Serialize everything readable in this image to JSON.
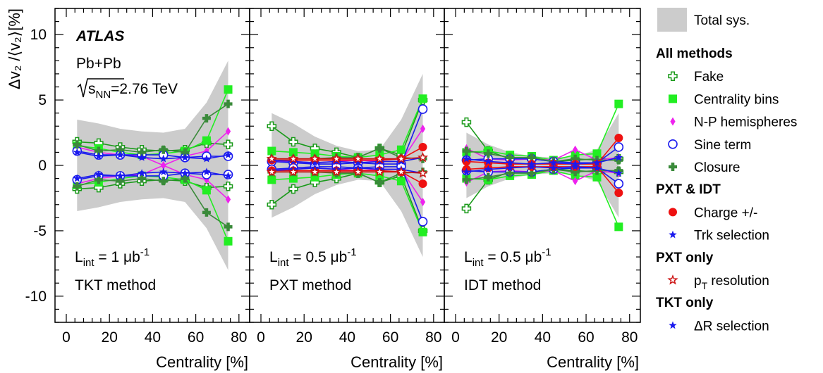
{
  "chart_data": {
    "type": "scatter",
    "ylabel": "Δv₂ /⟨v₂⟩[%]",
    "ylim": [
      -12,
      12
    ],
    "xlim": [
      0,
      83
    ],
    "yticks": [
      -10,
      -5,
      0,
      5,
      10
    ],
    "xticks": [
      0,
      20,
      40,
      60,
      80
    ],
    "xlabel": "Centrality [%]",
    "x": [
      5,
      15,
      25,
      35,
      45,
      55,
      65,
      75
    ],
    "experiment": "ATLAS",
    "system": "Pb+Pb",
    "energy_prefix": "s",
    "energy_sub": "NN",
    "energy_value": "=2.76 TeV",
    "colors": {
      "fake": "#1a9a1a",
      "centrality": "#22ee22",
      "np": "#ee22ee",
      "sine": "#1a1aee",
      "closure": "#3a8a3a",
      "charge": "#ee1111",
      "trk": "#1a1aee",
      "pt": "#cc1111",
      "dr": "#1a1aee",
      "band": "#cccccc"
    },
    "panels": [
      {
        "lumi_prefix": "L",
        "lumi_sub": "int",
        "lumi_value": " = 1 μb",
        "lumi_sup": "-1",
        "method": "TKT method",
        "band": [
          3.5,
          3.2,
          2.8,
          2.6,
          2.5,
          2.8,
          4.8,
          8.0
        ],
        "series": [
          {
            "key": "fake",
            "marker": "cross_open",
            "values": [
              1.8,
              1.7,
              1.4,
              1.2,
              1.1,
              1.2,
              1.7,
              1.6
            ]
          },
          {
            "key": "centrality",
            "marker": "square",
            "values": [
              1.5,
              1.3,
              1.0,
              0.8,
              0.9,
              1.1,
              1.9,
              5.8
            ]
          },
          {
            "key": "np",
            "marker": "diamond",
            "values": [
              1.4,
              1.0,
              0.8,
              0.7,
              0.0,
              0.7,
              1.1,
              2.6
            ]
          },
          {
            "key": "sine",
            "marker": "circle_open",
            "values": [
              1.1,
              0.8,
              0.8,
              0.8,
              0.8,
              0.6,
              0.7,
              0.7
            ]
          },
          {
            "key": "closure",
            "marker": "cross_filled",
            "values": [
              1.6,
              1.1,
              1.2,
              1.0,
              1.2,
              1.0,
              3.6,
              4.7
            ]
          },
          {
            "key": "dr",
            "marker": "star",
            "values": [
              1.0,
              0.7,
              0.8,
              0.6,
              0.5,
              0.6,
              0.5,
              0.8
            ]
          }
        ]
      },
      {
        "lumi_prefix": "L",
        "lumi_sub": "int",
        "lumi_value": " = 0.5 μb",
        "lumi_sup": "-1",
        "method": "PXT method",
        "band": [
          4.0,
          3.2,
          2.2,
          1.5,
          1.1,
          1.2,
          3.5,
          7.0
        ],
        "series": [
          {
            "key": "fake",
            "marker": "cross_open",
            "values": [
              3.0,
              1.8,
              1.3,
              1.0,
              0.6,
              1.3,
              0.8,
              5.0
            ]
          },
          {
            "key": "centrality",
            "marker": "square",
            "values": [
              1.1,
              1.0,
              0.9,
              0.7,
              0.6,
              0.8,
              1.2,
              5.1
            ]
          },
          {
            "key": "np",
            "marker": "diamond",
            "values": [
              0.3,
              0.3,
              0.2,
              0.3,
              0.4,
              0.3,
              0.3,
              2.8
            ]
          },
          {
            "key": "sine",
            "marker": "circle_open",
            "values": [
              0.3,
              0.2,
              0.1,
              0.1,
              0.2,
              0.1,
              0.1,
              4.3
            ]
          },
          {
            "key": "closure",
            "marker": "cross_filled",
            "values": [
              0.5,
              0.5,
              0.5,
              0.6,
              0.6,
              1.3,
              0.6,
              0.5
            ]
          },
          {
            "key": "charge",
            "marker": "circle_filled",
            "values": [
              0.4,
              0.4,
              0.4,
              0.4,
              0.4,
              0.4,
              0.5,
              1.4
            ]
          },
          {
            "key": "trk",
            "marker": "star",
            "values": [
              0.4,
              0.3,
              0.2,
              0.3,
              0.2,
              0.3,
              0.3,
              0.6
            ]
          },
          {
            "key": "pt",
            "marker": "star_open",
            "values": [
              0.5,
              0.5,
              0.5,
              0.5,
              0.5,
              0.5,
              0.5,
              0.6
            ]
          }
        ]
      },
      {
        "lumi_prefix": "L",
        "lumi_sub": "int",
        "lumi_value": " = 0.5 μb",
        "lumi_sup": "-1",
        "method": "IDT method",
        "band": [
          2.5,
          1.6,
          1.0,
          0.7,
          0.6,
          0.7,
          1.2,
          4.0
        ],
        "series": [
          {
            "key": "fake",
            "marker": "cross_open",
            "values": [
              3.3,
              1.1,
              0.5,
              0.5,
              0.3,
              0.4,
              0.5,
              0.5
            ]
          },
          {
            "key": "centrality",
            "marker": "square",
            "values": [
              1.0,
              1.1,
              0.8,
              0.7,
              0.4,
              0.8,
              0.9,
              4.7
            ]
          },
          {
            "key": "np",
            "marker": "diamond",
            "values": [
              1.3,
              0.5,
              0.4,
              0.5,
              0.4,
              1.2,
              0.4,
              0.6
            ]
          },
          {
            "key": "sine",
            "marker": "circle_open",
            "values": [
              0.4,
              0.5,
              0.5,
              0.5,
              0.3,
              0.2,
              0.2,
              1.4
            ]
          },
          {
            "key": "closure",
            "marker": "cross_filled",
            "values": [
              1.1,
              0.9,
              0.6,
              0.6,
              0.3,
              0.5,
              0.4,
              0.4
            ]
          },
          {
            "key": "charge",
            "marker": "circle_filled",
            "values": [
              0.3,
              0.2,
              0.1,
              0.1,
              0.1,
              0.1,
              0.1,
              2.1
            ]
          },
          {
            "key": "trk",
            "marker": "star",
            "values": [
              0.5,
              0.3,
              0.2,
              0.1,
              0.2,
              0.1,
              0.2,
              0.6
            ]
          }
        ]
      }
    ],
    "legend": [
      {
        "type": "band",
        "label": "Total sys."
      },
      {
        "type": "heading",
        "label": "All methods"
      },
      {
        "type": "item",
        "key": "fake",
        "marker": "cross_open",
        "label": "Fake"
      },
      {
        "type": "item",
        "key": "centrality",
        "marker": "square",
        "label": "Centrality bins"
      },
      {
        "type": "item",
        "key": "np",
        "marker": "diamond",
        "label": "N-P hemispheres"
      },
      {
        "type": "item",
        "key": "sine",
        "marker": "circle_open",
        "label": "Sine term"
      },
      {
        "type": "item",
        "key": "closure",
        "marker": "cross_filled",
        "label": "Closure"
      },
      {
        "type": "heading",
        "label": "PXT & IDT"
      },
      {
        "type": "item",
        "key": "charge",
        "marker": "circle_filled",
        "label": "Charge +/-"
      },
      {
        "type": "item",
        "key": "trk",
        "marker": "star",
        "label": "Trk selection"
      },
      {
        "type": "heading",
        "label": "PXT only"
      },
      {
        "type": "item",
        "key": "pt",
        "marker": "star_open",
        "label": "p",
        "sub": "T",
        "suffix": " resolution"
      },
      {
        "type": "heading",
        "label": "TKT only"
      },
      {
        "type": "item",
        "key": "dr",
        "marker": "star",
        "label": "ΔR selection"
      }
    ]
  }
}
